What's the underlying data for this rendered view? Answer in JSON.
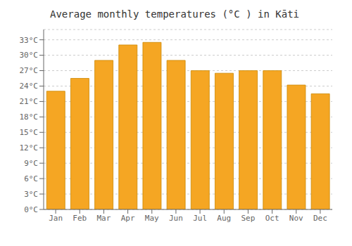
{
  "chart_data": {
    "type": "bar",
    "title": "Average monthly temperatures (°C ) in Kāti",
    "categories": [
      "Jan",
      "Feb",
      "Mar",
      "Apr",
      "May",
      "Jun",
      "Jul",
      "Aug",
      "Sep",
      "Oct",
      "Nov",
      "Dec"
    ],
    "values": [
      23.0,
      25.5,
      29.0,
      32.0,
      32.5,
      29.0,
      27.0,
      26.5,
      27.0,
      27.0,
      24.2,
      22.5
    ],
    "color": "#F5A623",
    "ylim": [
      0,
      35
    ],
    "yticks": [
      {
        "value": 0,
        "label": "0°C"
      },
      {
        "value": 3,
        "label": "3°C"
      },
      {
        "value": 6,
        "label": "6°C"
      },
      {
        "value": 9,
        "label": "9°C"
      },
      {
        "value": 12,
        "label": "12°C"
      },
      {
        "value": 15,
        "label": "15°C"
      },
      {
        "value": 18,
        "label": "18°C"
      },
      {
        "value": 21,
        "label": "21°C"
      },
      {
        "value": 24,
        "label": "24°C"
      },
      {
        "value": 27,
        "label": "27°C"
      },
      {
        "value": 30,
        "label": "30°C"
      },
      {
        "value": 33,
        "label": "33°C"
      }
    ],
    "grid": true
  }
}
